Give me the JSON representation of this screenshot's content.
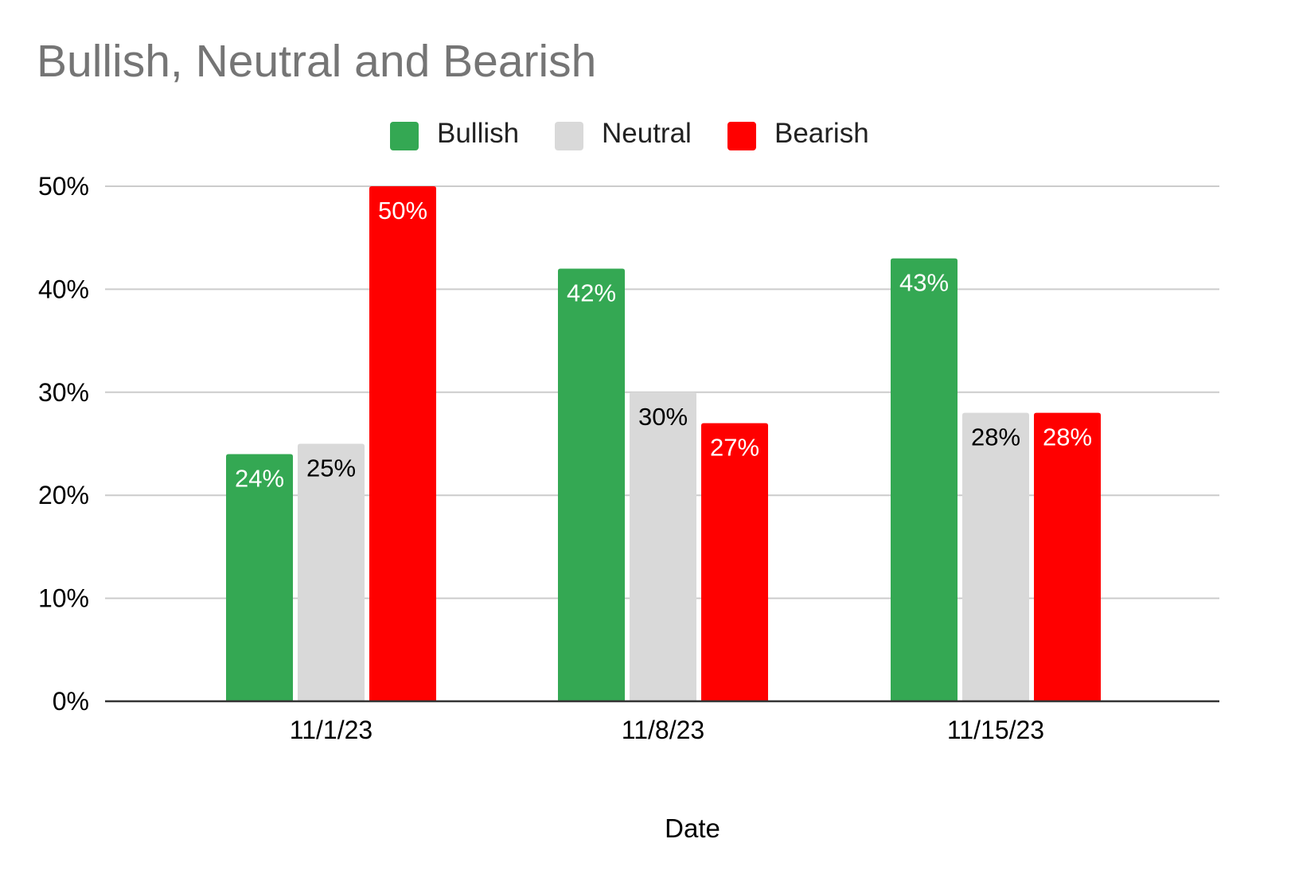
{
  "chart_data": {
    "type": "bar",
    "title": "Bullish, Neutral and Bearish",
    "xlabel": "Date",
    "ylabel": "",
    "categories": [
      "11/1/23",
      "11/8/23",
      "11/15/23"
    ],
    "series": [
      {
        "name": "Bullish",
        "values": [
          24,
          42,
          43
        ],
        "color": "#34a853",
        "label_color": "#ffffff",
        "labels": [
          "24%",
          "42%",
          "43%"
        ]
      },
      {
        "name": "Neutral",
        "values": [
          25,
          30,
          28
        ],
        "color": "#d9d9d9",
        "label_color": "#000000",
        "labels": [
          "25%",
          "30%",
          "28%"
        ]
      },
      {
        "name": "Bearish",
        "values": [
          50,
          27,
          28
        ],
        "color": "#ff0000",
        "label_color": "#ffffff",
        "labels": [
          "50%",
          "27%",
          "28%"
        ]
      }
    ],
    "ylim": [
      0,
      50
    ],
    "yticks": [
      0,
      10,
      20,
      30,
      40,
      50
    ],
    "ytick_labels": [
      "0%",
      "10%",
      "20%",
      "30%",
      "40%",
      "50%"
    ],
    "grid": true,
    "legend_position": "top"
  }
}
